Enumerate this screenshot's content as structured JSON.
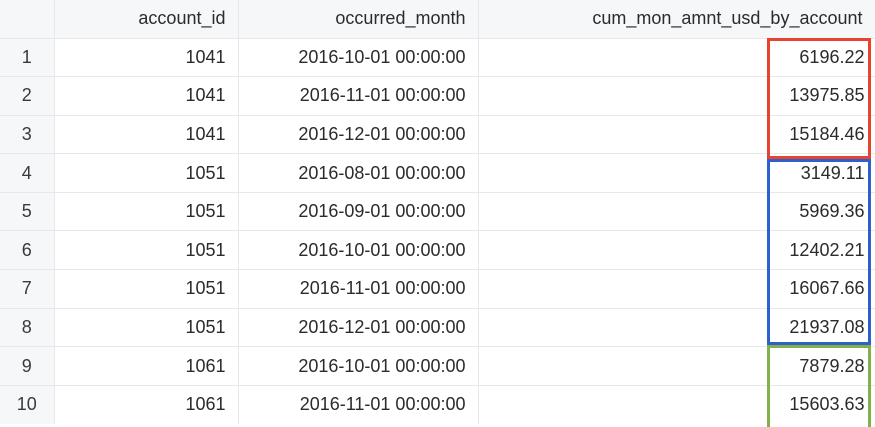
{
  "columns": {
    "index": "",
    "account_id": "account_id",
    "occurred_month": "occurred_month",
    "cum": "cum_mon_amnt_usd_by_account"
  },
  "rows": [
    {
      "idx": "1",
      "account_id": "1041",
      "occurred_month": "2016-10-01 00:00:00",
      "cum": "6196.22"
    },
    {
      "idx": "2",
      "account_id": "1041",
      "occurred_month": "2016-11-01 00:00:00",
      "cum": "13975.85"
    },
    {
      "idx": "3",
      "account_id": "1041",
      "occurred_month": "2016-12-01 00:00:00",
      "cum": "15184.46"
    },
    {
      "idx": "4",
      "account_id": "1051",
      "occurred_month": "2016-08-01 00:00:00",
      "cum": "3149.11"
    },
    {
      "idx": "5",
      "account_id": "1051",
      "occurred_month": "2016-09-01 00:00:00",
      "cum": "5969.36"
    },
    {
      "idx": "6",
      "account_id": "1051",
      "occurred_month": "2016-10-01 00:00:00",
      "cum": "12402.21"
    },
    {
      "idx": "7",
      "account_id": "1051",
      "occurred_month": "2016-11-01 00:00:00",
      "cum": "16067.66"
    },
    {
      "idx": "8",
      "account_id": "1051",
      "occurred_month": "2016-12-01 00:00:00",
      "cum": "21937.08"
    },
    {
      "idx": "9",
      "account_id": "1061",
      "occurred_month": "2016-10-01 00:00:00",
      "cum": "7879.28"
    },
    {
      "idx": "10",
      "account_id": "1061",
      "occurred_month": "2016-11-01 00:00:00",
      "cum": "15603.63"
    }
  ],
  "highlight_colors": {
    "account_1041": "#e8432e",
    "account_1051": "#2d5fcf",
    "account_1061": "#84b04a"
  }
}
